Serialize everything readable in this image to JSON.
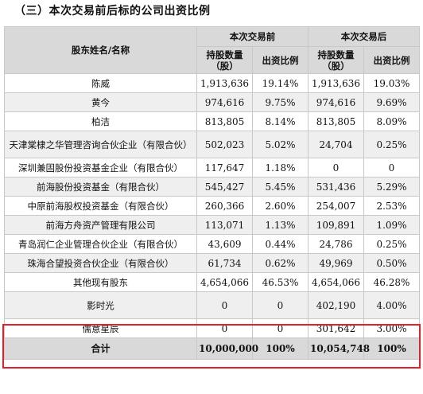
{
  "heading": "（三）本次交易前后标的公司出资比例",
  "header": {
    "shareholder": "股东姓名/名称",
    "before": "本次交易前",
    "after": "本次交易后",
    "shares": "持股数量（股）",
    "ratio": "出资比例"
  },
  "rows": [
    {
      "name": "陈威",
      "before_shares": "1,913,636",
      "before_ratio": "19.14%",
      "after_shares": "1,913,636",
      "after_ratio": "19.03%"
    },
    {
      "name": "黄今",
      "before_shares": "974,616",
      "before_ratio": "9.75%",
      "after_shares": "974,616",
      "after_ratio": "9.69%"
    },
    {
      "name": "柏洁",
      "before_shares": "813,805",
      "before_ratio": "8.14%",
      "after_shares": "813,805",
      "after_ratio": "8.09%"
    },
    {
      "name": "天津棠棣之华管理咨询合伙企业（有限合伙）",
      "before_shares": "502,023",
      "before_ratio": "5.02%",
      "after_shares": "24,704",
      "after_ratio": "0.25%"
    },
    {
      "name": "深圳兼固股份投资基金企业（有限合伙）",
      "before_shares": "117,647",
      "before_ratio": "1.18%",
      "after_shares": "0",
      "after_ratio": "0"
    },
    {
      "name": "前海股份投资基金（有限合伙）",
      "before_shares": "545,427",
      "before_ratio": "5.45%",
      "after_shares": "531,436",
      "after_ratio": "5.29%"
    },
    {
      "name": "中原前海股权投资基金（有限合伙）",
      "before_shares": "260,366",
      "before_ratio": "2.60%",
      "after_shares": "254,007",
      "after_ratio": "2.53%"
    },
    {
      "name": "前海方舟资产管理有限公司",
      "before_shares": "113,071",
      "before_ratio": "1.13%",
      "after_shares": "109,891",
      "after_ratio": "1.09%"
    },
    {
      "name": "青岛润仁企业管理合伙企业（有限合伙）",
      "before_shares": "43,609",
      "before_ratio": "0.44%",
      "after_shares": "24,786",
      "after_ratio": "0.25%"
    },
    {
      "name": "珠海合望投资合伙企业（有限合伙）",
      "before_shares": "61,734",
      "before_ratio": "0.62%",
      "after_shares": "49,969",
      "after_ratio": "0.50%"
    },
    {
      "name": "其他现有股东",
      "before_shares": "4,654,066",
      "before_ratio": "46.53%",
      "after_shares": "4,654,066",
      "after_ratio": "46.28%"
    },
    {
      "name": "影时光",
      "before_shares": "0",
      "before_ratio": "0",
      "after_shares": "402,190",
      "after_ratio": "4.00%"
    },
    {
      "name": "儒意星辰",
      "before_shares": "0",
      "before_ratio": "0",
      "after_shares": "301,642",
      "after_ratio": "3.00%"
    }
  ],
  "total": {
    "name": "合计",
    "before_shares": "10,000,000",
    "before_ratio": "100%",
    "after_shares": "10,054,748",
    "after_ratio": "100%"
  },
  "highlight_color": "#e0202a"
}
